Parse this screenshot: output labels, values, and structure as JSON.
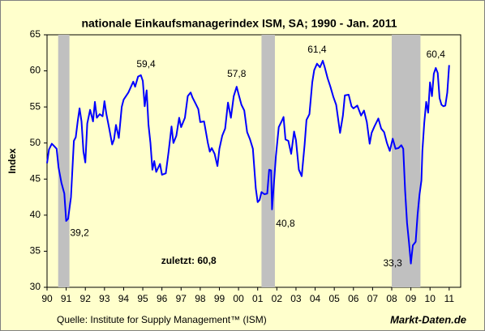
{
  "chart_data": {
    "type": "line",
    "title": "nationale Einkaufsmanagerindex ISM, SA; 1990 - Jan. 2011",
    "y_label": "Index",
    "source": "Quelle: Institute for Supply Management™ (ISM)",
    "brand": "Markt-Daten.de",
    "color": "#0000ff",
    "band_color": "#c0c0c0",
    "background": "#ffffcc",
    "xlim": [
      1990,
      2011.6
    ],
    "ylim": [
      30,
      65
    ],
    "yticks": [
      30,
      35,
      40,
      45,
      50,
      55,
      60,
      65
    ],
    "xticks": [
      {
        "value": 1990,
        "label": "90"
      },
      {
        "value": 1991,
        "label": "91"
      },
      {
        "value": 1992,
        "label": "92"
      },
      {
        "value": 1993,
        "label": "93"
      },
      {
        "value": 1994,
        "label": "94"
      },
      {
        "value": 1995,
        "label": "95"
      },
      {
        "value": 1996,
        "label": "96"
      },
      {
        "value": 1997,
        "label": "97"
      },
      {
        "value": 1998,
        "label": "98"
      },
      {
        "value": 1999,
        "label": "99"
      },
      {
        "value": 2000,
        "label": "00"
      },
      {
        "value": 2001,
        "label": "01"
      },
      {
        "value": 2002,
        "label": "02"
      },
      {
        "value": 2003,
        "label": "03"
      },
      {
        "value": 2004,
        "label": "04"
      },
      {
        "value": 2005,
        "label": "05"
      },
      {
        "value": 2006,
        "label": "06"
      },
      {
        "value": 2007,
        "label": "07"
      },
      {
        "value": 2008,
        "label": "08"
      },
      {
        "value": 2009,
        "label": "09"
      },
      {
        "value": 2010,
        "label": "10"
      },
      {
        "value": 2011,
        "label": "11"
      }
    ],
    "shaded_periods": [
      [
        1990.58,
        1991.17
      ],
      [
        2001.2,
        2001.9
      ],
      [
        2008.0,
        2009.5
      ]
    ],
    "x": [
      1990.0,
      1990.1,
      1990.25,
      1990.4,
      1990.5,
      1990.6,
      1990.75,
      1990.9,
      1991.0,
      1991.1,
      1991.25,
      1991.4,
      1991.5,
      1991.6,
      1991.7,
      1991.8,
      1991.9,
      1992.0,
      1992.1,
      1992.25,
      1992.4,
      1992.5,
      1992.6,
      1992.75,
      1992.9,
      1993.0,
      1993.1,
      1993.25,
      1993.4,
      1993.5,
      1993.6,
      1993.75,
      1993.9,
      1994.0,
      1994.25,
      1994.5,
      1994.6,
      1994.75,
      1994.9,
      1995.0,
      1995.1,
      1995.2,
      1995.3,
      1995.4,
      1995.5,
      1995.6,
      1995.7,
      1995.9,
      1996.0,
      1996.2,
      1996.35,
      1996.5,
      1996.6,
      1996.75,
      1996.9,
      1997.0,
      1997.2,
      1997.35,
      1997.5,
      1997.6,
      1997.75,
      1997.9,
      1998.0,
      1998.2,
      1998.4,
      1998.5,
      1998.6,
      1998.75,
      1998.9,
      1999.0,
      1999.15,
      1999.3,
      1999.45,
      1999.6,
      1999.75,
      1999.9,
      2000.0,
      2000.15,
      2000.3,
      2000.45,
      2000.6,
      2000.75,
      2000.9,
      2001.0,
      2001.1,
      2001.2,
      2001.35,
      2001.5,
      2001.6,
      2001.7,
      2001.75,
      2001.85,
      2001.95,
      2002.1,
      2002.25,
      2002.35,
      2002.45,
      2002.6,
      2002.75,
      2002.9,
      2003.0,
      2003.15,
      2003.3,
      2003.45,
      2003.55,
      2003.7,
      2003.85,
      2003.95,
      2004.1,
      2004.25,
      2004.4,
      2004.5,
      2004.65,
      2004.8,
      2004.95,
      2005.1,
      2005.3,
      2005.45,
      2005.55,
      2005.75,
      2005.9,
      2006.0,
      2006.2,
      2006.4,
      2006.55,
      2006.7,
      2006.85,
      2006.95,
      2007.1,
      2007.3,
      2007.45,
      2007.6,
      2007.75,
      2007.9,
      2008.05,
      2008.2,
      2008.35,
      2008.5,
      2008.6,
      2008.7,
      2008.8,
      2008.9,
      2009.0,
      2009.1,
      2009.25,
      2009.35,
      2009.45,
      2009.55,
      2009.6,
      2009.7,
      2009.8,
      2009.9,
      2010.0,
      2010.1,
      2010.2,
      2010.3,
      2010.4,
      2010.5,
      2010.6,
      2010.7,
      2010.8,
      2010.9,
      2011.0
    ],
    "values": [
      47.2,
      49.1,
      49.9,
      49.5,
      49.2,
      46.6,
      44.5,
      43.0,
      39.2,
      39.5,
      42.5,
      50.3,
      50.8,
      53.0,
      54.8,
      53.0,
      48.8,
      47.3,
      52.7,
      54.6,
      53.0,
      55.7,
      53.5,
      54.0,
      53.7,
      55.8,
      54.0,
      52.0,
      49.8,
      50.5,
      52.5,
      50.7,
      55.0,
      56.0,
      57.0,
      58.5,
      57.8,
      59.2,
      59.4,
      58.6,
      55.1,
      57.3,
      52.5,
      50.0,
      46.3,
      47.5,
      46.0,
      47.1,
      45.6,
      45.8,
      48.8,
      52.3,
      50.0,
      51.0,
      53.5,
      52.2,
      53.5,
      56.5,
      57.0,
      56.3,
      55.5,
      54.7,
      52.9,
      53.0,
      50.0,
      48.8,
      49.3,
      48.5,
      46.8,
      49.2,
      51.0,
      52.0,
      55.6,
      53.5,
      56.5,
      57.8,
      56.8,
      55.3,
      54.5,
      51.5,
      50.5,
      49.2,
      43.7,
      41.8,
      42.1,
      43.2,
      42.9,
      43.0,
      46.3,
      46.2,
      40.8,
      44.5,
      48.2,
      52.2,
      53.0,
      53.6,
      50.5,
      50.3,
      48.5,
      51.6,
      50.4,
      46.3,
      45.4,
      49.8,
      53.2,
      54.0,
      58.4,
      60.1,
      61.0,
      60.5,
      61.4,
      60.5,
      59.0,
      57.8,
      56.4,
      55.3,
      51.4,
      53.8,
      56.6,
      56.7,
      55.1,
      54.8,
      55.2,
      53.8,
      54.5,
      52.9,
      49.9,
      51.4,
      52.3,
      53.4,
      52.0,
      51.5,
      50.0,
      48.9,
      50.6,
      49.2,
      49.3,
      49.7,
      49.2,
      43.4,
      38.9,
      36.2,
      33.3,
      35.8,
      36.3,
      40.1,
      42.8,
      44.8,
      48.9,
      52.8,
      55.7,
      54.2,
      58.4,
      56.5,
      59.6,
      60.4,
      59.7,
      56.2,
      55.3,
      55.1,
      55.2,
      57.0,
      60.8
    ],
    "annotations": [
      {
        "text": "59,4",
        "x": 1995.17,
        "y": 60.85
      },
      {
        "text": "57,8",
        "x": 1999.9,
        "y": 59.5
      },
      {
        "text": "61,4",
        "x": 2004.1,
        "y": 62.9
      },
      {
        "text": "60,4",
        "x": 2010.3,
        "y": 62.2
      },
      {
        "text": "39,2",
        "x": 1991.7,
        "y": 37.5
      },
      {
        "text": "40,8",
        "x": 2002.45,
        "y": 38.75
      },
      {
        "text": "33,3",
        "x": 2008.05,
        "y": 33.25
      },
      {
        "text": "zuletzt: 60,8",
        "x": 1997.4,
        "y": 33.6,
        "bold": true
      }
    ]
  }
}
